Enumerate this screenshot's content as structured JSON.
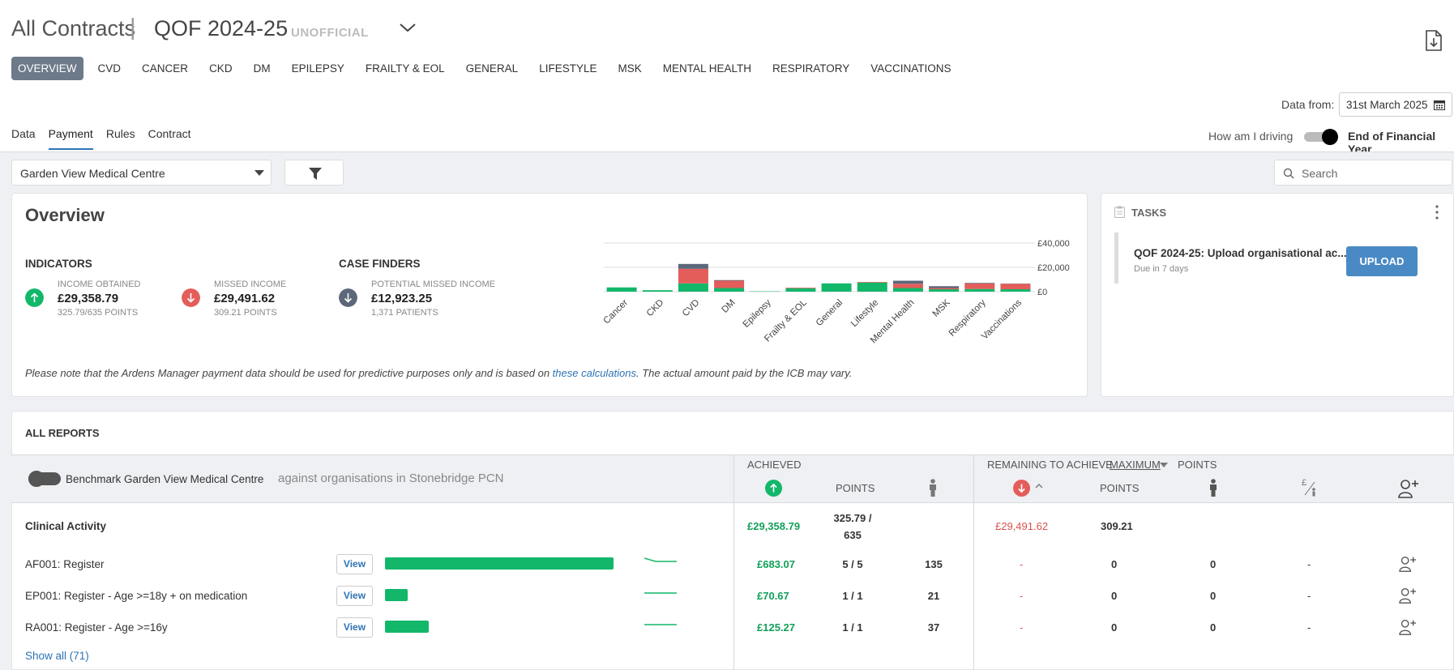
{
  "header": {
    "title": "All Contracts",
    "separator": "|",
    "contract": "QOF 2024-25",
    "status": "UNOFFICIAL"
  },
  "nav_tabs": [
    "OVERVIEW",
    "CVD",
    "CANCER",
    "CKD",
    "DM",
    "EPILEPSY",
    "FRAILTY & EOL",
    "GENERAL",
    "LIFESTYLE",
    "MSK",
    "MENTAL HEALTH",
    "RESPIRATORY",
    "VACCINATIONS"
  ],
  "data_from": {
    "label": "Data from:",
    "value": "31st March 2025"
  },
  "sub_tabs": [
    "Data",
    "Payment",
    "Rules",
    "Contract"
  ],
  "driving": {
    "left_label": "How am I driving",
    "right_label": "End of Financial Year"
  },
  "practice_select": "Garden View Medical Centre",
  "search_placeholder": "Search",
  "overview": {
    "title": "Overview",
    "indicators_heading": "INDICATORS",
    "case_finders_heading": "CASE FINDERS",
    "income": {
      "label": "INCOME OBTAINED",
      "value": "£29,358.79",
      "sub": "325.79/635 POINTS"
    },
    "missed": {
      "label": "MISSED INCOME",
      "value": "£29,491.62",
      "sub": "309.21 POINTS"
    },
    "potential": {
      "label": "POTENTIAL MISSED INCOME",
      "value": "£12,923.25",
      "sub": "1,371 PATIENTS"
    },
    "note_before": "Please note that the Ardens Manager payment data should be used for predictive purposes only and is based on ",
    "note_link": "these calculations",
    "note_after": ". The actual amount paid by the ICB may vary."
  },
  "chart_data": {
    "type": "bar",
    "stacked": true,
    "categories": [
      "Cancer",
      "CKD",
      "CVD",
      "DM",
      "Epilepsy",
      "Frailty & EOL",
      "General",
      "Lifestyle",
      "Mental Health",
      "MSK",
      "Respiratory",
      "Vaccinations"
    ],
    "series": [
      {
        "name": "Income obtained",
        "color": "#12b76a",
        "values": [
          3500,
          1200,
          6800,
          3000,
          300,
          2800,
          6800,
          7500,
          3000,
          2000,
          2200,
          2000
        ]
      },
      {
        "name": "Missed income",
        "color": "#e35d5b",
        "values": [
          0,
          0,
          12000,
          6000,
          0,
          500,
          0,
          500,
          3500,
          1000,
          4500,
          4500
        ]
      },
      {
        "name": "Potential missed income",
        "color": "#5c6779",
        "values": [
          0,
          0,
          4000,
          500,
          0,
          0,
          0,
          0,
          2500,
          1500,
          500,
          200
        ]
      }
    ],
    "y_ticks": [
      "£40,000",
      "£20,000",
      "£0"
    ],
    "ylim": [
      0,
      40000
    ]
  },
  "tasks": {
    "heading": "TASKS",
    "item_title": "QOF 2024-25: Upload organisational ac...",
    "item_due": "Due in 7 days",
    "button": "UPLOAD"
  },
  "reports": {
    "title": "ALL REPORTS",
    "benchmark_label": "Benchmark Garden View Medical Centre",
    "against_label": "against organisations in Stonebridge PCN",
    "achieved_heading": "ACHIEVED",
    "remaining_heading": "REMAINING TO ACHIEVE",
    "maximum": "MAXIMUM",
    "points_heading": "POINTS",
    "points_col": "POINTS",
    "points_col2": "POINTS",
    "summary": {
      "label": "Clinical Activity",
      "achieved": "£29,358.79",
      "points": "325.79 /",
      "points_total": "635",
      "remaining": "£29,491.62",
      "remaining_points": "309.21"
    },
    "rows": [
      {
        "code": "AF001: Register",
        "view": "View",
        "bar_fraction": 1.0,
        "achieved": "£683.07",
        "points": "5 / 5",
        "patients": "135",
        "remaining": "-",
        "rem_points": "0",
        "rem_patients": "0",
        "per_patient": "-"
      },
      {
        "code": "EP001: Register - Age >=18y + on medication",
        "view": "View",
        "bar_fraction": 0.1,
        "achieved": "£70.67",
        "points": "1 / 1",
        "patients": "21",
        "remaining": "-",
        "rem_points": "0",
        "rem_patients": "0",
        "per_patient": "-"
      },
      {
        "code": "RA001: Register - Age >=16y",
        "view": "View",
        "bar_fraction": 0.19,
        "achieved": "£125.27",
        "points": "1 / 1",
        "patients": "37",
        "remaining": "-",
        "rem_points": "0",
        "rem_patients": "0",
        "per_patient": "-"
      }
    ],
    "show_all": "Show all (71)"
  }
}
